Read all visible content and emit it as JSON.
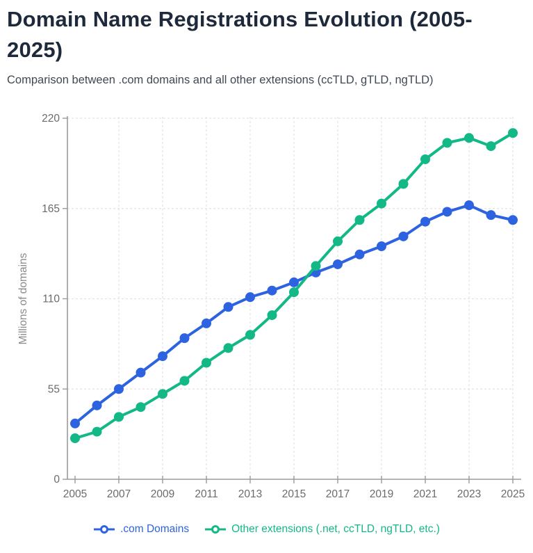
{
  "header": {
    "title": "Domain Name Registrations Evolution (2005-2025)",
    "subtitle": "Comparison between .com domains and all other extensions (ccTLD, gTLD, ngTLD)"
  },
  "chart_data": {
    "type": "line",
    "title": "Domain Name Registrations Evolution (2005-2025)",
    "x": [
      2005,
      2006,
      2007,
      2008,
      2009,
      2010,
      2011,
      2012,
      2013,
      2014,
      2015,
      2016,
      2017,
      2018,
      2019,
      2020,
      2021,
      2022,
      2023,
      2024,
      2025
    ],
    "series": [
      {
        "name": ".com Domains",
        "color": "#2d63e0",
        "values": [
          34,
          45,
          55,
          65,
          75,
          86,
          95,
          105,
          111,
          115,
          120,
          126,
          131,
          137,
          142,
          148,
          157,
          163,
          167,
          161,
          158
        ]
      },
      {
        "name": "Other extensions (.net, ccTLD, ngTLD, etc.)",
        "color": "#12b886",
        "values": [
          25,
          29,
          38,
          44,
          52,
          60,
          71,
          80,
          88,
          100,
          114,
          130,
          145,
          158,
          168,
          180,
          195,
          205,
          208,
          203,
          211
        ]
      }
    ],
    "xlabel": "",
    "ylabel": "Millions of domains",
    "ylim": [
      0,
      220
    ],
    "yticks": [
      0,
      55,
      110,
      165,
      220
    ],
    "xticks": [
      2005,
      2007,
      2009,
      2011,
      2013,
      2015,
      2017,
      2019,
      2021,
      2023,
      2025
    ],
    "grid": true,
    "legend_position": "bottom"
  }
}
